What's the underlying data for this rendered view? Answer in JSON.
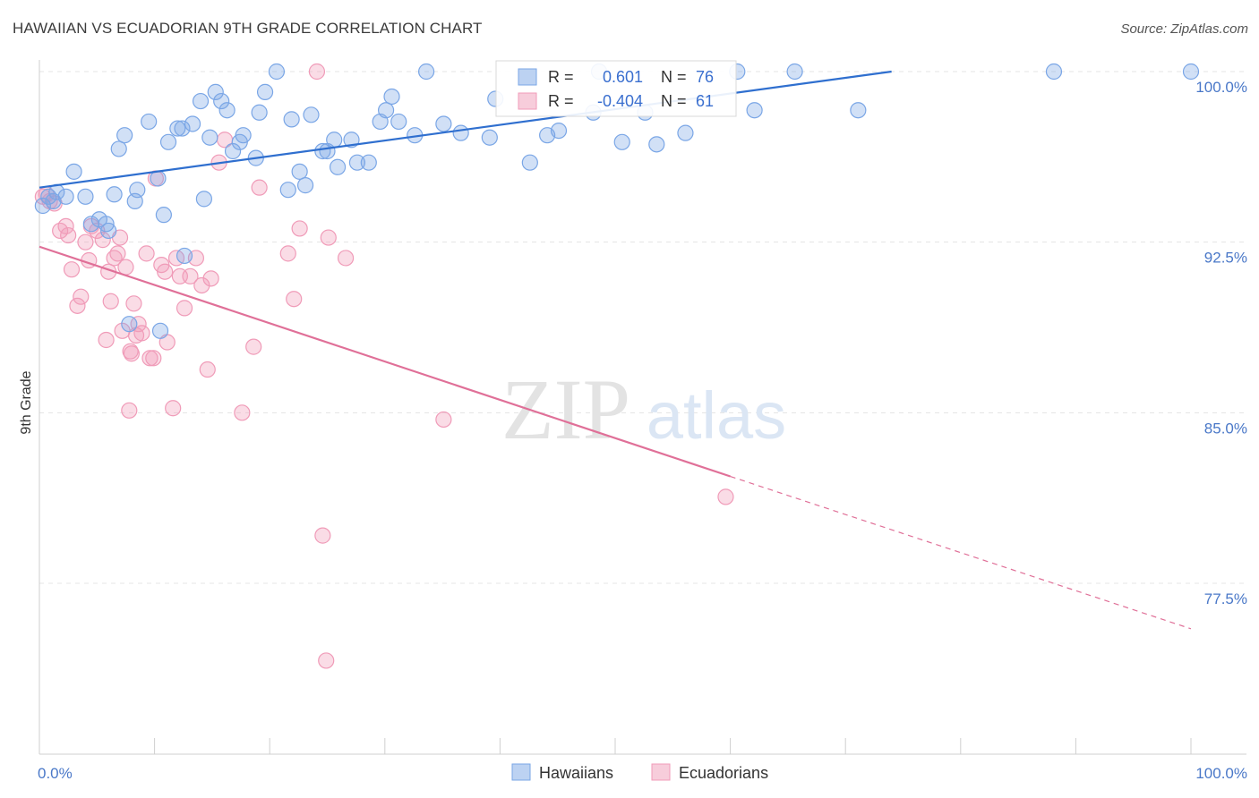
{
  "title": "HAWAIIAN VS ECUADORIAN 9TH GRADE CORRELATION CHART",
  "source": "Source: ZipAtlas.com",
  "watermark": {
    "zip": "ZIP",
    "atlas": "atlas"
  },
  "chart_data": {
    "type": "scatter",
    "ylabel": "9th Grade",
    "xlim": [
      0,
      100
    ],
    "ylim": [
      71,
      101.5
    ],
    "x_tick_labels": [
      {
        "value": 0,
        "label": "0.0%"
      },
      {
        "value": 100,
        "label": "100.0%"
      }
    ],
    "y_tick_labels": [
      {
        "value": 100,
        "label": "100.0%"
      },
      {
        "value": 92.5,
        "label": "92.5%"
      },
      {
        "value": 85,
        "label": "85.0%"
      },
      {
        "value": 77.5,
        "label": "77.5%"
      }
    ],
    "grid": true,
    "legend_position": "top-center",
    "colors": {
      "hawaiians": "#7aa6e6",
      "hawaiians_line": "#2f6fcf",
      "ecuadorians": "#f09bb8",
      "ecuadorians_line": "#e07098"
    },
    "stats": [
      {
        "key": "hawaiians",
        "r_label": "R =",
        "r_value": "0.601",
        "n_label": "N =",
        "n_value": "76"
      },
      {
        "key": "ecuadorians",
        "r_label": "R =",
        "r_value": "-0.404",
        "n_label": "N =",
        "n_value": "61"
      }
    ],
    "series": [
      {
        "name": "Hawaiians",
        "key": "hawaiians",
        "trend": {
          "x0": 0,
          "y0": 94.9,
          "x1": 74,
          "y1": 100,
          "dashed_to": null
        },
        "points": [
          [
            0.3,
            94.1
          ],
          [
            0.8,
            94.5
          ],
          [
            1.2,
            94.3
          ],
          [
            1.5,
            94.7
          ],
          [
            2.3,
            94.5
          ],
          [
            3.0,
            95.6
          ],
          [
            4.0,
            94.5
          ],
          [
            4.5,
            93.3
          ],
          [
            5.2,
            93.5
          ],
          [
            5.8,
            93.3
          ],
          [
            6.0,
            93.0
          ],
          [
            6.5,
            94.6
          ],
          [
            6.9,
            96.6
          ],
          [
            7.4,
            97.2
          ],
          [
            7.8,
            88.9
          ],
          [
            8.3,
            94.3
          ],
          [
            8.5,
            94.8
          ],
          [
            9.5,
            97.8
          ],
          [
            10.3,
            95.3
          ],
          [
            10.5,
            88.6
          ],
          [
            10.8,
            93.7
          ],
          [
            11.2,
            96.9
          ],
          [
            12.0,
            97.5
          ],
          [
            12.4,
            97.5
          ],
          [
            12.6,
            91.9
          ],
          [
            13.3,
            97.7
          ],
          [
            14.0,
            98.7
          ],
          [
            14.3,
            94.4
          ],
          [
            14.8,
            97.1
          ],
          [
            15.3,
            99.1
          ],
          [
            15.8,
            98.7
          ],
          [
            16.3,
            98.3
          ],
          [
            16.8,
            96.5
          ],
          [
            17.4,
            96.9
          ],
          [
            17.7,
            97.2
          ],
          [
            18.8,
            96.2
          ],
          [
            19.1,
            98.2
          ],
          [
            19.6,
            99.1
          ],
          [
            20.6,
            100.0
          ],
          [
            21.6,
            94.8
          ],
          [
            21.9,
            97.9
          ],
          [
            22.6,
            95.6
          ],
          [
            23.1,
            95.0
          ],
          [
            23.6,
            98.1
          ],
          [
            24.6,
            96.5
          ],
          [
            25.0,
            96.5
          ],
          [
            25.6,
            97.0
          ],
          [
            25.9,
            95.8
          ],
          [
            27.1,
            97.0
          ],
          [
            27.6,
            96.0
          ],
          [
            28.6,
            96.0
          ],
          [
            29.6,
            97.8
          ],
          [
            30.1,
            98.3
          ],
          [
            30.6,
            98.9
          ],
          [
            31.2,
            97.8
          ],
          [
            32.6,
            97.2
          ],
          [
            33.6,
            100.0
          ],
          [
            35.1,
            97.7
          ],
          [
            36.6,
            97.3
          ],
          [
            39.1,
            97.1
          ],
          [
            39.6,
            98.8
          ],
          [
            42.6,
            96.0
          ],
          [
            44.1,
            97.2
          ],
          [
            45.1,
            97.4
          ],
          [
            48.1,
            98.2
          ],
          [
            48.6,
            100.0
          ],
          [
            50.6,
            96.9
          ],
          [
            52.6,
            98.2
          ],
          [
            53.6,
            96.8
          ],
          [
            56.1,
            97.3
          ],
          [
            60.6,
            100.0
          ],
          [
            62.1,
            98.3
          ],
          [
            65.6,
            100.0
          ],
          [
            71.1,
            98.3
          ],
          [
            88.1,
            100.0
          ],
          [
            100.0,
            100.0
          ]
        ]
      },
      {
        "name": "Ecuadorians",
        "key": "ecuadorians",
        "trend": {
          "x0": 0,
          "y0": 92.3,
          "x1": 60,
          "y1": 82.2,
          "dashed_to": {
            "x": 100,
            "y": 75.5
          }
        },
        "points": [
          [
            0.3,
            94.5
          ],
          [
            0.9,
            94.3
          ],
          [
            1.3,
            94.2
          ],
          [
            1.8,
            93.0
          ],
          [
            2.3,
            93.2
          ],
          [
            2.5,
            92.8
          ],
          [
            2.8,
            91.3
          ],
          [
            3.3,
            89.7
          ],
          [
            3.6,
            90.1
          ],
          [
            4.0,
            92.5
          ],
          [
            4.5,
            93.2
          ],
          [
            4.3,
            91.7
          ],
          [
            5.0,
            93.0
          ],
          [
            5.5,
            92.6
          ],
          [
            5.8,
            88.2
          ],
          [
            6.0,
            91.2
          ],
          [
            6.2,
            89.9
          ],
          [
            6.5,
            91.8
          ],
          [
            6.8,
            92.0
          ],
          [
            7.0,
            92.7
          ],
          [
            7.2,
            88.6
          ],
          [
            7.5,
            91.4
          ],
          [
            7.8,
            85.1
          ],
          [
            7.9,
            87.7
          ],
          [
            8.0,
            87.6
          ],
          [
            8.2,
            89.8
          ],
          [
            8.4,
            88.4
          ],
          [
            8.6,
            88.9
          ],
          [
            8.9,
            88.5
          ],
          [
            9.3,
            92.0
          ],
          [
            9.6,
            87.4
          ],
          [
            9.9,
            87.4
          ],
          [
            10.1,
            95.3
          ],
          [
            10.6,
            91.5
          ],
          [
            10.9,
            91.2
          ],
          [
            11.1,
            88.1
          ],
          [
            11.6,
            85.2
          ],
          [
            11.9,
            91.8
          ],
          [
            12.2,
            91.0
          ],
          [
            12.6,
            89.6
          ],
          [
            13.1,
            91.0
          ],
          [
            13.6,
            91.8
          ],
          [
            14.1,
            90.6
          ],
          [
            14.6,
            86.9
          ],
          [
            14.9,
            90.9
          ],
          [
            15.6,
            96.0
          ],
          [
            16.1,
            97.0
          ],
          [
            17.6,
            85.0
          ],
          [
            18.6,
            87.9
          ],
          [
            19.1,
            94.9
          ],
          [
            21.6,
            92.0
          ],
          [
            22.1,
            90.0
          ],
          [
            22.6,
            93.1
          ],
          [
            24.1,
            100.0
          ],
          [
            24.6,
            79.6
          ],
          [
            24.9,
            74.1
          ],
          [
            25.1,
            92.7
          ],
          [
            26.6,
            91.8
          ],
          [
            35.1,
            84.7
          ],
          [
            59.6,
            81.3
          ],
          [
            0.6,
            94.6
          ]
        ]
      }
    ],
    "bottom_legend": [
      "Hawaiians",
      "Ecuadorians"
    ]
  }
}
